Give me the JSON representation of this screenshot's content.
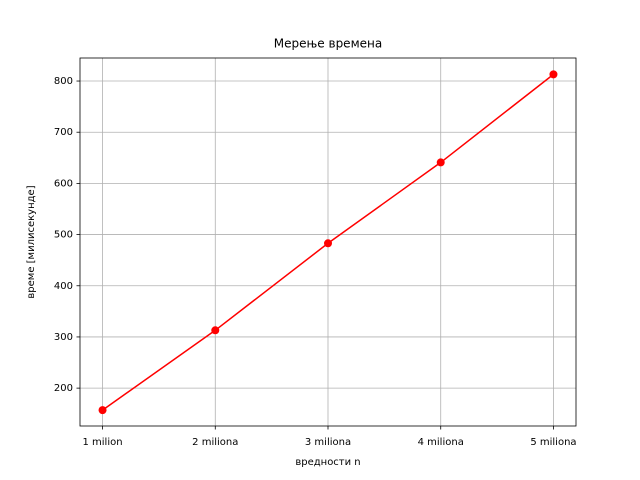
{
  "chart_data": {
    "type": "line",
    "title": "Мерење времена",
    "x_label": "вредности n",
    "y_label": "време [милисекунде]",
    "categories": [
      "1 milion",
      "2 miliona",
      "3 miliona",
      "4 miliona",
      "5 miliona"
    ],
    "series": [
      {
        "color": "#ff0000",
        "values": [
          157,
          313,
          483,
          641,
          813
        ]
      }
    ],
    "ylim": [
      126,
      845
    ],
    "yticks": [
      200,
      300,
      400,
      500,
      600,
      700,
      800
    ],
    "grid": true
  }
}
